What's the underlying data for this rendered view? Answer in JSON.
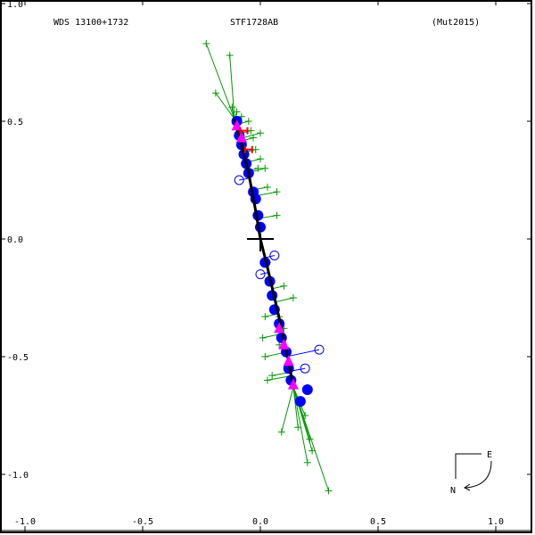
{
  "header": {
    "wds_id": "WDS 13100+1732",
    "discoverer": "STF1728AB",
    "orbit_ref": "(Mut2015)"
  },
  "compass": {
    "east_label": "E",
    "north_label": "N"
  },
  "chart_data": {
    "type": "scatter",
    "title": "WDS 13100+1732  STF1728AB  (Mut2015)",
    "xlabel": "",
    "ylabel": "",
    "xlim": [
      -1.0,
      1.1
    ],
    "ylim": [
      -1.1,
      1.0
    ],
    "x_ticks": [
      "-1.0",
      "-0.5",
      "0.0",
      "0.5",
      "1.0"
    ],
    "y_ticks": [
      "1.0",
      "0.5",
      "0.0",
      "-0.5",
      "-1.0"
    ],
    "grid": false,
    "legend": "none",
    "colors": {
      "micrometer": "#009900",
      "speckle": "#0000ff",
      "interferometric": "#ff00ff",
      "hipparcos": "#ff0000",
      "orbit": "#000000",
      "axes": "#000000"
    },
    "series": [
      {
        "name": "orbit",
        "type": "line",
        "color": "#000000",
        "points": [
          [
            -0.11,
            0.51
          ],
          [
            -0.08,
            0.4
          ],
          [
            -0.05,
            0.28
          ],
          [
            -0.02,
            0.12
          ],
          [
            0.0,
            0.0
          ],
          [
            0.03,
            -0.12
          ],
          [
            0.06,
            -0.25
          ],
          [
            0.09,
            -0.38
          ],
          [
            0.12,
            -0.52
          ],
          [
            0.14,
            -0.63
          ]
        ]
      },
      {
        "name": "micrometer observations",
        "type": "scatter",
        "marker": "+",
        "color": "#009900",
        "points": [
          [
            -0.23,
            0.83
          ],
          [
            -0.13,
            0.78
          ],
          [
            -0.19,
            0.62
          ],
          [
            -0.12,
            0.56
          ],
          [
            -0.1,
            0.54
          ],
          [
            -0.08,
            0.52
          ],
          [
            -0.05,
            0.5
          ],
          [
            -0.04,
            0.46
          ],
          [
            -0.03,
            0.43
          ],
          [
            0.0,
            0.45
          ],
          [
            -0.02,
            0.38
          ],
          [
            0.0,
            0.34
          ],
          [
            -0.01,
            0.3
          ],
          [
            0.02,
            0.3
          ],
          [
            0.07,
            0.2
          ],
          [
            0.07,
            0.1
          ],
          [
            0.03,
            0.22
          ],
          [
            0.03,
            -0.1
          ],
          [
            0.1,
            -0.2
          ],
          [
            0.14,
            -0.25
          ],
          [
            0.08,
            -0.33
          ],
          [
            0.1,
            -0.38
          ],
          [
            0.02,
            -0.33
          ],
          [
            0.01,
            -0.42
          ],
          [
            0.02,
            -0.5
          ],
          [
            0.05,
            -0.58
          ],
          [
            0.03,
            -0.6
          ],
          [
            0.08,
            -0.45
          ],
          [
            0.17,
            -0.7
          ],
          [
            0.19,
            -0.75
          ],
          [
            0.16,
            -0.8
          ],
          [
            0.21,
            -0.85
          ],
          [
            0.22,
            -0.9
          ],
          [
            0.09,
            -0.82
          ],
          [
            0.29,
            -1.07
          ],
          [
            0.2,
            -0.95
          ]
        ]
      },
      {
        "name": "speckle observations",
        "type": "scatter",
        "marker": "filled-circle",
        "color": "#0000ff",
        "points": [
          [
            -0.1,
            0.5
          ],
          [
            -0.09,
            0.44
          ],
          [
            -0.08,
            0.4
          ],
          [
            -0.07,
            0.36
          ],
          [
            -0.06,
            0.32
          ],
          [
            -0.05,
            0.28
          ],
          [
            -0.03,
            0.2
          ],
          [
            -0.02,
            0.17
          ],
          [
            -0.01,
            0.1
          ],
          [
            0.0,
            0.05
          ],
          [
            0.02,
            -0.1
          ],
          [
            0.04,
            -0.18
          ],
          [
            0.05,
            -0.24
          ],
          [
            0.06,
            -0.3
          ],
          [
            0.08,
            -0.36
          ],
          [
            0.09,
            -0.42
          ],
          [
            0.11,
            -0.48
          ],
          [
            0.12,
            -0.55
          ],
          [
            0.13,
            -0.6
          ],
          [
            0.2,
            -0.64
          ],
          [
            0.17,
            -0.69
          ]
        ]
      },
      {
        "name": "speckle (open)",
        "type": "scatter",
        "marker": "open-circle",
        "color": "#0000ff",
        "points": [
          [
            -0.09,
            0.25
          ],
          [
            0.06,
            -0.07
          ],
          [
            0.0,
            -0.15
          ],
          [
            0.25,
            -0.47
          ],
          [
            0.19,
            -0.55
          ]
        ]
      },
      {
        "name": "interferometric",
        "type": "scatter",
        "marker": "triangle",
        "color": "#ff00ff",
        "points": [
          [
            -0.1,
            0.48
          ],
          [
            -0.08,
            0.43
          ],
          [
            0.08,
            -0.38
          ],
          [
            0.1,
            -0.45
          ],
          [
            0.12,
            -0.52
          ],
          [
            0.14,
            -0.62
          ]
        ]
      },
      {
        "name": "Hipparcos",
        "type": "scatter",
        "marker": "H",
        "color": "#ff0000",
        "points": [
          [
            -0.07,
            0.46
          ],
          [
            -0.05,
            0.38
          ]
        ]
      }
    ]
  }
}
